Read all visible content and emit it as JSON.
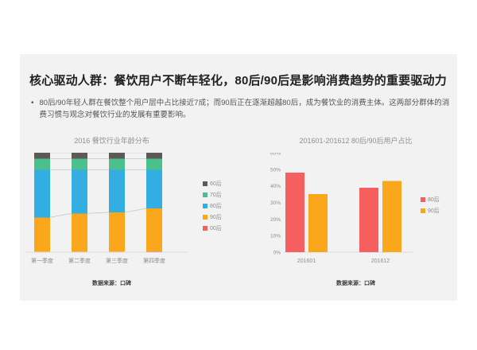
{
  "slide": {
    "title": "核心驱动人群：餐饮用户不断年轻化，80后/90后是影响消费趋势的重要驱动力",
    "bullet_marker": "•",
    "bullet": "80后/90年轻人群在餐饮整个用户层中占比接近7成；而90后正在逐渐超越80后，成为餐饮业的消费主体。这两部分群体的消费习惯与观念对餐饮行业的发展有重要影响。"
  },
  "colors": {
    "panel_bg": "#F2F2F2",
    "red_00s_80s": "#F55F5F",
    "orange_90s": "#FAA71B",
    "blue_80s": "#32AEE3",
    "green_70s": "#4BC08D",
    "gray_60s": "#5C5958",
    "axis_line": "#D9D9D9",
    "connector_line": "#C4C4C4",
    "tick_text": "#8C8C8C"
  },
  "chart_data": [
    {
      "type": "bar",
      "subtype": "stacked-100-percent",
      "title": "2016 餐饮行业年龄分布",
      "categories": [
        "第一季度",
        "第二季度",
        "第三季度",
        "第四季度"
      ],
      "series": [
        {
          "name": "00后",
          "color": "#F55F5F",
          "values": [
            0,
            0,
            0,
            1
          ]
        },
        {
          "name": "90后",
          "color": "#FAA71B",
          "values": [
            35,
            39,
            40,
            43
          ]
        },
        {
          "name": "80后",
          "color": "#32AEE3",
          "values": [
            48,
            44,
            43,
            39
          ]
        },
        {
          "name": "70后",
          "color": "#4BC08D",
          "values": [
            11,
            11,
            11,
            11
          ]
        },
        {
          "name": "60后",
          "color": "#5C5958",
          "values": [
            6,
            6,
            6,
            6
          ]
        }
      ],
      "stack_order": "bottom-to-top",
      "legend_order_top_to_bottom": [
        "60后",
        "70后",
        "80后",
        "90后",
        "00后"
      ],
      "legend_position": "right",
      "ylim": [
        0,
        100
      ],
      "grid": false,
      "connector_lines": true,
      "source": "数据来源：口碑"
    },
    {
      "type": "bar",
      "subtype": "grouped",
      "title": "201601-201612  80后/90后用户占比",
      "categories": [
        "201601",
        "201612"
      ],
      "series": [
        {
          "name": "80后",
          "color": "#F55F5F",
          "values": [
            48,
            39
          ]
        },
        {
          "name": "90后",
          "color": "#FAA71B",
          "values": [
            35,
            43
          ]
        }
      ],
      "ylim": [
        0,
        60
      ],
      "ytick_values": [
        0,
        10,
        20,
        30,
        40,
        50,
        60
      ],
      "ytick_labels": [
        "0%",
        "10%",
        "20%",
        "30%",
        "40%",
        "50%",
        "60%"
      ],
      "legend_position": "right",
      "grid": false,
      "source": "数据来源：口碑"
    }
  ]
}
